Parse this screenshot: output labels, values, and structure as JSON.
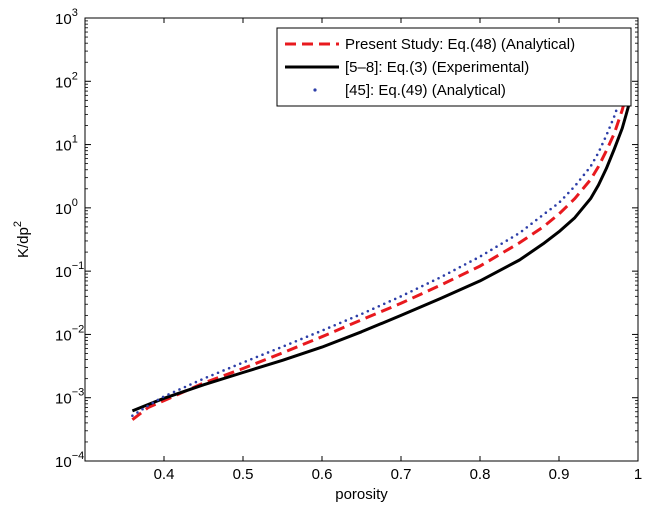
{
  "chart_data": {
    "type": "line",
    "xlabel": "porosity",
    "ylabel_base": "K/dp",
    "ylabel_sup": "2",
    "x_scale": "linear",
    "y_scale": "log",
    "xlim": [
      0.3,
      1.0
    ],
    "ylim": [
      0.0001,
      1000
    ],
    "x_ticks": [
      0.4,
      0.5,
      0.6,
      0.7,
      0.8,
      0.9,
      1
    ],
    "x_tick_labels": [
      "0.4",
      "0.5",
      "0.6",
      "0.7",
      "0.8",
      "0.9",
      "1"
    ],
    "y_ticks": [
      {
        "value": 0.0001,
        "base": "10",
        "exp": "−4"
      },
      {
        "value": 0.001,
        "base": "10",
        "exp": "−3"
      },
      {
        "value": 0.01,
        "base": "10",
        "exp": "−2"
      },
      {
        "value": 0.1,
        "base": "10",
        "exp": "−1"
      },
      {
        "value": 1,
        "base": "10",
        "exp": "0"
      },
      {
        "value": 10,
        "base": "10",
        "exp": "1"
      },
      {
        "value": 100,
        "base": "10",
        "exp": "2"
      },
      {
        "value": 1000,
        "base": "10",
        "exp": "3"
      }
    ],
    "grid": false,
    "legend_position": "top-right",
    "series": [
      {
        "name": "Present Study: Eq.(48) (Analytical)",
        "color": "#e8191e",
        "style": "dashed",
        "x": [
          0.36,
          0.38,
          0.4,
          0.45,
          0.5,
          0.55,
          0.6,
          0.65,
          0.7,
          0.75,
          0.8,
          0.85,
          0.88,
          0.9,
          0.92,
          0.94,
          0.95,
          0.96,
          0.97,
          0.98,
          0.985,
          0.99
        ],
        "y": [
          0.00045,
          0.0007,
          0.0009,
          0.0017,
          0.0029,
          0.0051,
          0.0092,
          0.017,
          0.031,
          0.06,
          0.12,
          0.28,
          0.5,
          0.8,
          1.4,
          2.8,
          4.5,
          8,
          15,
          35,
          60,
          90
        ]
      },
      {
        "name": "[5–8]: Eq.(3) (Experimental)",
        "color": "#000000",
        "style": "solid",
        "x": [
          0.36,
          0.38,
          0.4,
          0.45,
          0.5,
          0.55,
          0.6,
          0.65,
          0.7,
          0.75,
          0.8,
          0.85,
          0.88,
          0.9,
          0.92,
          0.94,
          0.95,
          0.96,
          0.97,
          0.98,
          0.985,
          0.99
        ],
        "y": [
          0.00062,
          0.00078,
          0.00098,
          0.0016,
          0.0025,
          0.0039,
          0.0063,
          0.011,
          0.02,
          0.037,
          0.07,
          0.15,
          0.27,
          0.42,
          0.7,
          1.4,
          2.3,
          4.2,
          8.5,
          18,
          30,
          50
        ]
      },
      {
        "name": "[45]: Eq.(49) (Analytical)",
        "color": "#2d3ea8",
        "style": "dotted",
        "x": [
          0.36,
          0.38,
          0.4,
          0.45,
          0.5,
          0.55,
          0.6,
          0.65,
          0.7,
          0.75,
          0.8,
          0.85,
          0.88,
          0.9,
          0.92,
          0.94,
          0.95,
          0.96,
          0.97,
          0.98,
          0.985,
          0.99
        ],
        "y": [
          0.00052,
          0.00075,
          0.00105,
          0.002,
          0.0036,
          0.0064,
          0.0115,
          0.021,
          0.04,
          0.08,
          0.17,
          0.4,
          0.78,
          1.2,
          2.2,
          4.5,
          7.5,
          14,
          28,
          65,
          110,
          160
        ]
      }
    ]
  }
}
